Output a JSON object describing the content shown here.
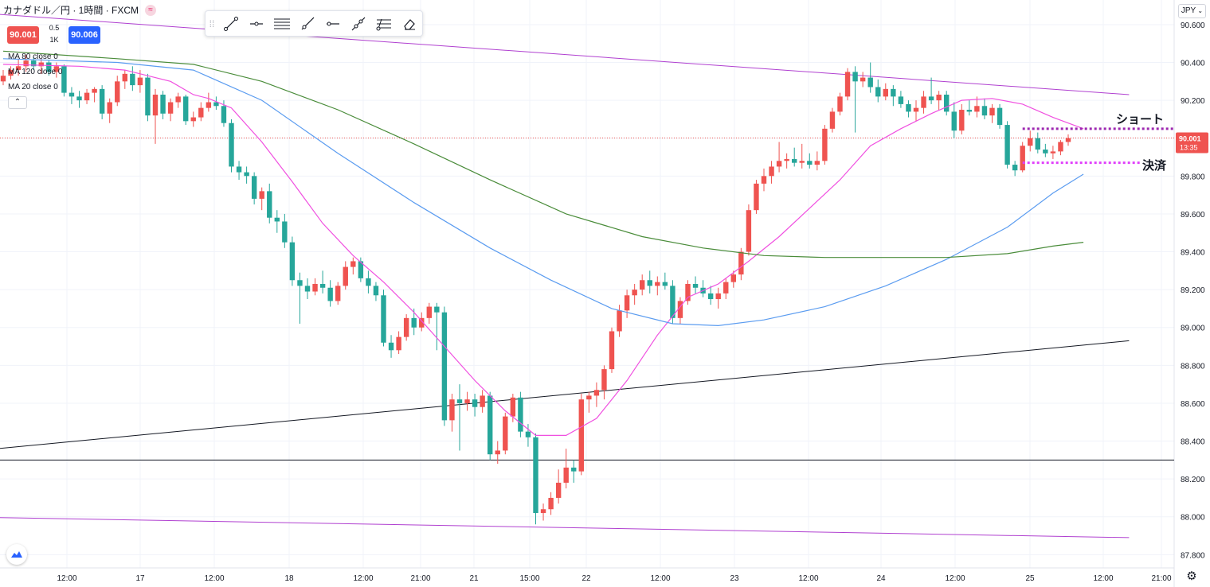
{
  "header": {
    "title": "カナダドル／円 · 1時間 · FXCM",
    "sell_price": "90.001",
    "buy_price": "90.006",
    "spread_top": "0.5",
    "spread_bottom": "1K",
    "currency_button": "JPY",
    "colors": {
      "sell": "#ef5350",
      "buy": "#2962ff"
    }
  },
  "indicators": [
    {
      "label": "MA 80 close 0",
      "color": "#4a8c3a"
    },
    {
      "label": "MA 120 close 0",
      "color": "#5b9cf0"
    },
    {
      "label": "MA 20 close 0",
      "color": "#f050e0"
    }
  ],
  "toolbar": {
    "tools": [
      "trend-line-icon",
      "horizontal-ray-icon",
      "parallel-channel-icon",
      "ray-icon",
      "horizontal-line-icon",
      "extended-line-icon",
      "fib-retracement-icon",
      "eraser-icon"
    ]
  },
  "annotations": {
    "short_label": "ショート",
    "settle_label": "決済"
  },
  "chart_data": {
    "type": "candlestick",
    "symbol": "カナダドル／円",
    "interval": "1時間",
    "source": "FXCM",
    "current_price": "90.001",
    "countdown": "13:35",
    "ylim": [
      87.73,
      90.73
    ],
    "y_ticks": [
      "90.600",
      "90.400",
      "90.200",
      "90.000",
      "89.800",
      "89.600",
      "89.400",
      "89.200",
      "89.000",
      "88.800",
      "88.600",
      "88.400",
      "88.200",
      "88.000",
      "87.800"
    ],
    "x_ticks": [
      "12:00",
      "17",
      "12:00",
      "18",
      "12:00",
      "21:00",
      "21",
      "15:00",
      "22",
      "12:00",
      "23",
      "12:00",
      "24",
      "12:00",
      "25",
      "12:00",
      "21:00"
    ],
    "colors": {
      "up": "#ef5350",
      "down": "#26a69a"
    },
    "candles": [
      [
        90.3,
        90.36,
        90.28,
        90.33
      ],
      [
        90.33,
        90.38,
        90.31,
        90.36
      ],
      [
        90.36,
        90.42,
        90.33,
        90.38
      ],
      [
        90.38,
        90.44,
        90.35,
        90.41
      ],
      [
        90.41,
        90.43,
        90.36,
        90.38
      ],
      [
        90.38,
        90.42,
        90.34,
        90.4
      ],
      [
        90.4,
        90.41,
        90.33,
        90.35
      ],
      [
        90.35,
        90.4,
        90.32,
        90.38
      ],
      [
        90.38,
        90.39,
        90.22,
        90.24
      ],
      [
        90.24,
        90.27,
        90.18,
        90.22
      ],
      [
        90.22,
        90.25,
        90.16,
        90.2
      ],
      [
        90.2,
        90.26,
        90.18,
        90.24
      ],
      [
        90.24,
        90.27,
        90.19,
        90.26
      ],
      [
        90.26,
        90.28,
        90.1,
        90.13
      ],
      [
        90.13,
        90.21,
        90.08,
        90.19
      ],
      [
        90.19,
        90.33,
        90.17,
        90.3
      ],
      [
        90.3,
        90.36,
        90.26,
        90.34
      ],
      [
        90.34,
        90.38,
        90.25,
        90.28
      ],
      [
        90.28,
        90.36,
        90.24,
        90.32
      ],
      [
        90.32,
        90.34,
        90.09,
        90.12
      ],
      [
        90.12,
        90.26,
        89.97,
        90.23
      ],
      [
        90.23,
        90.25,
        90.1,
        90.13
      ],
      [
        90.13,
        90.21,
        90.09,
        90.19
      ],
      [
        90.19,
        90.24,
        90.16,
        90.22
      ],
      [
        90.22,
        90.23,
        90.07,
        90.09
      ],
      [
        90.09,
        90.14,
        90.06,
        90.11
      ],
      [
        90.11,
        90.19,
        90.09,
        90.16
      ],
      [
        90.16,
        90.24,
        90.14,
        90.19
      ],
      [
        90.19,
        90.22,
        90.15,
        90.17
      ],
      [
        90.17,
        90.2,
        90.06,
        90.08
      ],
      [
        90.08,
        90.1,
        89.82,
        89.85
      ],
      [
        89.85,
        89.88,
        89.78,
        89.82
      ],
      [
        89.82,
        89.85,
        89.76,
        89.8
      ],
      [
        89.8,
        89.82,
        89.65,
        89.68
      ],
      [
        89.68,
        89.74,
        89.62,
        89.72
      ],
      [
        89.72,
        89.76,
        89.55,
        89.58
      ],
      [
        89.58,
        89.62,
        89.5,
        89.56
      ],
      [
        89.56,
        89.6,
        89.42,
        89.45
      ],
      [
        89.45,
        89.48,
        89.22,
        89.25
      ],
      [
        89.25,
        89.29,
        89.02,
        89.22
      ],
      [
        89.22,
        89.26,
        89.15,
        89.19
      ],
      [
        89.19,
        89.26,
        89.17,
        89.23
      ],
      [
        89.23,
        89.3,
        89.18,
        89.21
      ],
      [
        89.21,
        89.25,
        89.11,
        89.14
      ],
      [
        89.14,
        89.24,
        89.12,
        89.22
      ],
      [
        89.22,
        89.35,
        89.2,
        89.32
      ],
      [
        89.32,
        89.37,
        89.28,
        89.35
      ],
      [
        89.35,
        89.37,
        89.24,
        89.26
      ],
      [
        89.26,
        89.3,
        89.18,
        89.22
      ],
      [
        89.22,
        89.24,
        89.14,
        89.17
      ],
      [
        89.17,
        89.2,
        88.9,
        88.92
      ],
      [
        88.92,
        88.96,
        88.84,
        88.88
      ],
      [
        88.88,
        88.98,
        88.86,
        88.95
      ],
      [
        88.95,
        89.07,
        88.93,
        89.05
      ],
      [
        89.05,
        89.1,
        88.96,
        89.0
      ],
      [
        89.0,
        89.08,
        88.98,
        89.05
      ],
      [
        89.05,
        89.13,
        89.02,
        89.11
      ],
      [
        89.11,
        89.13,
        88.88,
        89.08
      ],
      [
        89.08,
        89.11,
        88.48,
        88.51
      ],
      [
        88.51,
        88.65,
        88.45,
        88.62
      ],
      [
        88.62,
        88.7,
        88.35,
        88.6
      ],
      [
        88.6,
        88.66,
        88.56,
        88.62
      ],
      [
        88.62,
        88.65,
        88.53,
        88.58
      ],
      [
        88.58,
        88.67,
        88.55,
        88.64
      ],
      [
        88.64,
        88.66,
        88.3,
        88.33
      ],
      [
        88.33,
        88.4,
        88.28,
        88.35
      ],
      [
        88.35,
        88.55,
        88.33,
        88.53
      ],
      [
        88.53,
        88.65,
        88.5,
        88.63
      ],
      [
        88.63,
        88.66,
        88.42,
        88.45
      ],
      [
        88.45,
        88.49,
        88.37,
        88.42
      ],
      [
        88.42,
        88.44,
        87.96,
        88.02
      ],
      [
        88.02,
        88.07,
        87.98,
        88.04
      ],
      [
        88.04,
        88.13,
        88.01,
        88.1
      ],
      [
        88.1,
        88.25,
        88.07,
        88.18
      ],
      [
        88.18,
        88.36,
        88.15,
        88.26
      ],
      [
        88.26,
        88.3,
        88.18,
        88.24
      ],
      [
        88.24,
        88.65,
        88.22,
        88.62
      ],
      [
        88.62,
        88.66,
        88.55,
        88.64
      ],
      [
        88.64,
        88.71,
        88.58,
        88.67
      ],
      [
        88.67,
        88.8,
        88.62,
        88.78
      ],
      [
        88.78,
        89.0,
        88.76,
        88.98
      ],
      [
        88.98,
        89.12,
        88.95,
        89.09
      ],
      [
        89.09,
        89.2,
        89.05,
        89.17
      ],
      [
        89.17,
        89.23,
        89.12,
        89.2
      ],
      [
        89.2,
        89.28,
        89.17,
        89.25
      ],
      [
        89.25,
        89.3,
        89.18,
        89.22
      ],
      [
        89.22,
        89.27,
        89.17,
        89.24
      ],
      [
        89.24,
        89.29,
        89.2,
        89.22
      ],
      [
        89.22,
        89.25,
        89.02,
        89.05
      ],
      [
        89.05,
        89.16,
        89.02,
        89.14
      ],
      [
        89.14,
        89.25,
        89.12,
        89.23
      ],
      [
        89.23,
        89.27,
        89.18,
        89.21
      ],
      [
        89.21,
        89.25,
        89.16,
        89.18
      ],
      [
        89.18,
        89.22,
        89.12,
        89.15
      ],
      [
        89.15,
        89.21,
        89.1,
        89.18
      ],
      [
        89.18,
        89.26,
        89.15,
        89.24
      ],
      [
        89.24,
        89.3,
        89.21,
        89.28
      ],
      [
        89.28,
        89.42,
        89.25,
        89.4
      ],
      [
        89.4,
        89.65,
        89.38,
        89.62
      ],
      [
        89.62,
        89.78,
        89.6,
        89.76
      ],
      [
        89.76,
        89.84,
        89.72,
        89.8
      ],
      [
        89.8,
        89.88,
        89.76,
        89.85
      ],
      [
        89.85,
        89.98,
        89.82,
        89.88
      ],
      [
        89.88,
        89.92,
        89.84,
        89.89
      ],
      [
        89.89,
        89.95,
        89.85,
        89.87
      ],
      [
        89.87,
        89.97,
        89.84,
        89.88
      ],
      [
        89.88,
        89.92,
        89.84,
        89.86
      ],
      [
        89.86,
        89.93,
        89.83,
        89.88
      ],
      [
        89.88,
        90.07,
        89.86,
        90.05
      ],
      [
        90.05,
        90.16,
        90.03,
        90.14
      ],
      [
        90.14,
        90.24,
        90.12,
        90.22
      ],
      [
        90.22,
        90.37,
        90.2,
        90.35
      ],
      [
        90.35,
        90.38,
        90.03,
        90.3
      ],
      [
        90.3,
        90.35,
        90.27,
        90.32
      ],
      [
        90.32,
        90.4,
        90.24,
        90.27
      ],
      [
        90.27,
        90.31,
        90.19,
        90.22
      ],
      [
        90.22,
        90.29,
        90.2,
        90.26
      ],
      [
        90.26,
        90.28,
        90.17,
        90.22
      ],
      [
        90.22,
        90.25,
        90.16,
        90.18
      ],
      [
        90.18,
        90.2,
        90.11,
        90.14
      ],
      [
        90.14,
        90.2,
        90.09,
        90.16
      ],
      [
        90.16,
        90.25,
        90.13,
        90.22
      ],
      [
        90.22,
        90.32,
        90.18,
        90.2
      ],
      [
        90.2,
        90.25,
        90.15,
        90.23
      ],
      [
        90.23,
        90.25,
        90.12,
        90.14
      ],
      [
        90.14,
        90.19,
        90.0,
        90.04
      ],
      [
        90.04,
        90.18,
        90.02,
        90.15
      ],
      [
        90.15,
        90.2,
        90.12,
        90.14
      ],
      [
        90.14,
        90.22,
        90.11,
        90.17
      ],
      [
        90.17,
        90.21,
        90.1,
        90.12
      ],
      [
        90.12,
        90.18,
        90.08,
        90.16
      ],
      [
        90.16,
        90.18,
        90.05,
        90.07
      ],
      [
        90.07,
        90.09,
        89.84,
        89.86
      ],
      [
        89.86,
        89.88,
        89.8,
        89.83
      ],
      [
        89.83,
        89.98,
        89.82,
        89.96
      ],
      [
        89.96,
        90.04,
        89.93,
        90.0
      ],
      [
        90.0,
        90.03,
        89.92,
        89.94
      ],
      [
        89.94,
        89.97,
        89.9,
        89.92
      ],
      [
        89.92,
        89.96,
        89.89,
        89.93
      ],
      [
        89.93,
        89.99,
        89.91,
        89.98
      ],
      [
        89.98,
        90.02,
        89.96,
        90.0
      ]
    ],
    "moving_averages": [
      {
        "name": "MA 20 close 0",
        "color": "#f050e0",
        "points": [
          [
            0,
            90.39
          ],
          [
            10,
            90.38
          ],
          [
            16,
            90.36
          ],
          [
            22,
            90.3
          ],
          [
            25,
            90.23
          ],
          [
            27,
            90.21
          ],
          [
            30,
            90.16
          ],
          [
            34,
            89.98
          ],
          [
            38,
            89.77
          ],
          [
            42,
            89.55
          ],
          [
            46,
            89.38
          ],
          [
            50,
            89.24
          ],
          [
            54,
            89.08
          ],
          [
            58,
            88.9
          ],
          [
            62,
            88.72
          ],
          [
            66,
            88.56
          ],
          [
            70,
            88.43
          ],
          [
            74,
            88.43
          ],
          [
            78,
            88.52
          ],
          [
            82,
            88.72
          ],
          [
            86,
            88.96
          ],
          [
            90,
            89.16
          ],
          [
            94,
            89.23
          ],
          [
            98,
            89.35
          ],
          [
            102,
            89.48
          ],
          [
            106,
            89.63
          ],
          [
            110,
            89.78
          ],
          [
            114,
            89.96
          ],
          [
            118,
            90.05
          ],
          [
            122,
            90.13
          ],
          [
            126,
            90.2
          ],
          [
            130,
            90.21
          ],
          [
            134,
            90.18
          ],
          [
            138,
            90.11
          ],
          [
            142,
            90.05
          ]
        ]
      },
      {
        "name": "MA 120 close 0",
        "color": "#5b9cf0",
        "points": [
          [
            0,
            90.42
          ],
          [
            15,
            90.4
          ],
          [
            25,
            90.36
          ],
          [
            34,
            90.2
          ],
          [
            44,
            89.92
          ],
          [
            54,
            89.66
          ],
          [
            64,
            89.42
          ],
          [
            72,
            89.25
          ],
          [
            80,
            89.1
          ],
          [
            88,
            89.02
          ],
          [
            94,
            89.01
          ],
          [
            100,
            89.04
          ],
          [
            108,
            89.11
          ],
          [
            116,
            89.22
          ],
          [
            124,
            89.36
          ],
          [
            132,
            89.53
          ],
          [
            138,
            89.71
          ],
          [
            142,
            89.81
          ]
        ]
      },
      {
        "name": "MA 80 close 0",
        "color": "#4a8c3a",
        "points": [
          [
            0,
            90.46
          ],
          [
            15,
            90.42
          ],
          [
            25,
            90.39
          ],
          [
            34,
            90.3
          ],
          [
            44,
            90.15
          ],
          [
            54,
            89.97
          ],
          [
            64,
            89.78
          ],
          [
            74,
            89.6
          ],
          [
            84,
            89.48
          ],
          [
            92,
            89.42
          ],
          [
            100,
            89.38
          ],
          [
            108,
            89.37
          ],
          [
            116,
            89.37
          ],
          [
            124,
            89.37
          ],
          [
            132,
            89.39
          ],
          [
            138,
            89.43
          ],
          [
            142,
            89.45
          ]
        ]
      }
    ],
    "trend_lines": [
      {
        "kind": "channel-upper",
        "color": "#b040d0",
        "start": [
          -6,
          90.67
        ],
        "end": [
          148,
          90.23
        ]
      },
      {
        "kind": "channel-lower",
        "color": "#b040d0",
        "start": [
          -6,
          88.0
        ],
        "end": [
          148,
          87.89
        ]
      },
      {
        "kind": "support-trend",
        "color": "#131722",
        "start": [
          -6,
          88.34
        ],
        "end": [
          148,
          88.93
        ]
      },
      {
        "kind": "horizontal-level",
        "color": "#131722",
        "price": 88.3
      }
    ],
    "trade_levels": [
      {
        "label": "ショート",
        "price": 90.05,
        "color": "#9c27b0",
        "style": "dotted"
      },
      {
        "label": "決済",
        "price": 89.87,
        "color": "#e040fb",
        "style": "dotted"
      }
    ]
  }
}
